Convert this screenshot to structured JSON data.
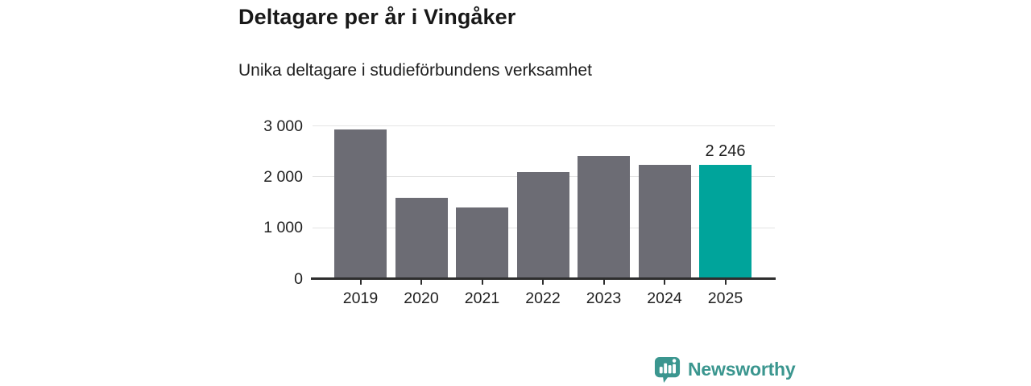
{
  "header": {
    "title": "Deltagare per år i Vingåker",
    "subtitle": "Unika deltagare i studieförbundens verksamhet"
  },
  "chart_data": {
    "type": "bar",
    "title": "Deltagare per år i Vingåker",
    "subtitle": "Unika deltagare i studieförbundens verksamhet",
    "categories": [
      "2019",
      "2020",
      "2021",
      "2022",
      "2023",
      "2024",
      "2025"
    ],
    "values": [
      2940,
      1590,
      1410,
      2100,
      2410,
      2240,
      2246
    ],
    "ylim": [
      0,
      3000
    ],
    "y_ticks": [
      {
        "value": 0,
        "label": "0"
      },
      {
        "value": 1000,
        "label": "1 000"
      },
      {
        "value": 2000,
        "label": "2 000"
      },
      {
        "value": 3000,
        "label": "3 000"
      }
    ],
    "grid": "horizontal",
    "legend": "none",
    "highlight_index": 6,
    "annotation": {
      "index": 6,
      "text": "2 246"
    },
    "colors": {
      "bar": "#6c6c74",
      "highlight": "#00a49b",
      "axis": "#2e2e2e",
      "grid": "#e4e4e4",
      "text": "#1f1f1f"
    }
  },
  "footer": {
    "brand": "Newsworthy",
    "brand_color": "#3b968f",
    "logo_icon": "newsworthy-bar-chart-bubble-icon"
  }
}
